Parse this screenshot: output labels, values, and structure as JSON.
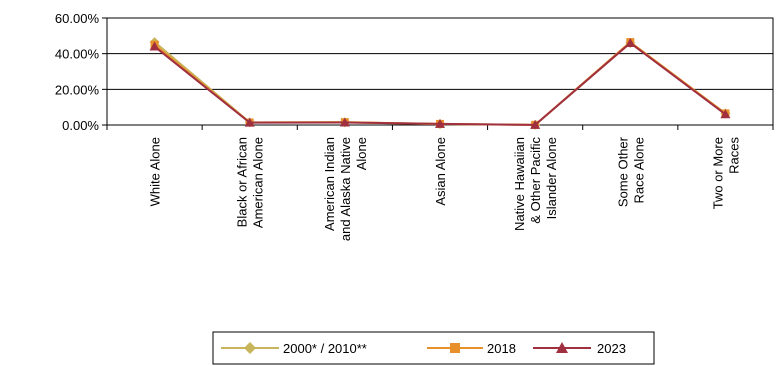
{
  "chart_data": {
    "type": "line",
    "categories": [
      [
        "White Alone"
      ],
      [
        "Black or African",
        "American Alone"
      ],
      [
        "American Indian",
        "and Alaska Native",
        "Alone"
      ],
      [
        "Asian Alone"
      ],
      [
        "Native Hawaiian",
        "& Other Pacific",
        "Islander Alone"
      ],
      [
        "Some Other",
        "Race Alone"
      ],
      [
        "Two or More",
        "Races"
      ]
    ],
    "series": [
      {
        "name": "2000* / 2010**",
        "color": "#c8b45a",
        "marker": "diamond",
        "values": [
          46.5,
          1.5,
          1.5,
          0.5,
          0.1,
          46.0,
          6.5
        ]
      },
      {
        "name": "2018",
        "color": "#e8902a",
        "marker": "square",
        "values": [
          45.0,
          1.4,
          1.6,
          0.6,
          0.1,
          46.5,
          6.5
        ]
      },
      {
        "name": "2023",
        "color": "#a03040",
        "marker": "triangle",
        "values": [
          44.0,
          1.3,
          1.4,
          0.6,
          0.1,
          46.0,
          6.0
        ]
      }
    ],
    "y_ticks": [
      "0.00%",
      "20.00%",
      "40.00%",
      "60.00%"
    ],
    "ylim": [
      0,
      60
    ],
    "grid": true,
    "legend_position": "bottom"
  }
}
